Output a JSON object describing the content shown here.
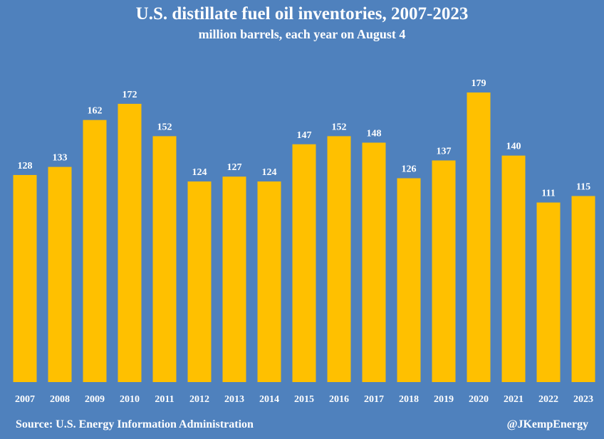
{
  "colors": {
    "background": "#4f81bd",
    "bar": "#ffc000",
    "text": "#ffffff"
  },
  "chart_data": {
    "type": "bar",
    "title": "U.S. distillate fuel oil inventories, 2007-2023",
    "subtitle": "million barrels, each year on August 4",
    "categories": [
      "2007",
      "2008",
      "2009",
      "2010",
      "2011",
      "2012",
      "2013",
      "2014",
      "2015",
      "2016",
      "2017",
      "2018",
      "2019",
      "2020",
      "2021",
      "2022",
      "2023"
    ],
    "values": [
      128,
      133,
      162,
      172,
      152,
      124,
      127,
      124,
      147,
      152,
      148,
      126,
      137,
      179,
      140,
      111,
      115
    ],
    "data_labels": true,
    "ylim": [
      0,
      200
    ],
    "grid": false,
    "legend": "none"
  },
  "footer": {
    "source": "Source: U.S. Energy Information Administration",
    "credit": "@JKempEnergy"
  }
}
